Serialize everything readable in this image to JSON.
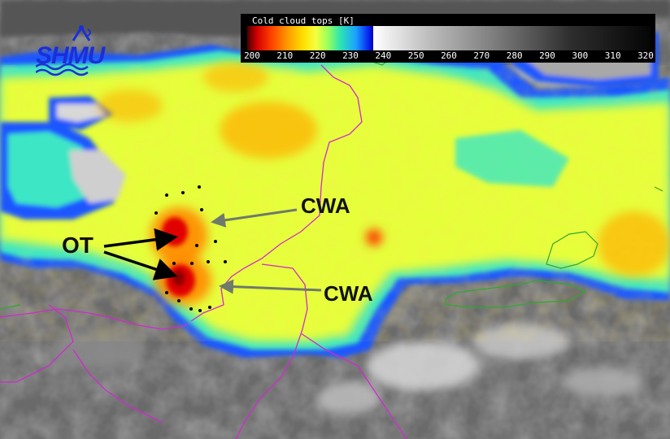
{
  "colorbar": {
    "title": "Cold cloud tops [K]",
    "ticks": [
      "200",
      "210",
      "220",
      "230",
      "240",
      "250",
      "260",
      "270",
      "280",
      "290",
      "300",
      "310",
      "320"
    ],
    "range_k": [
      200,
      320
    ]
  },
  "logo": {
    "text": "SHMU",
    "icon": "antenna-icon"
  },
  "annotations": {
    "ot_label": "OT",
    "cwa_label_upper": "CWA",
    "cwa_label_lower": "CWA"
  },
  "colors": {
    "boundary_magenta": "#d02ad0",
    "coast_green": "#2ea82e",
    "arrow_black": "#000000",
    "arrow_gray": "#6e7a6a"
  }
}
